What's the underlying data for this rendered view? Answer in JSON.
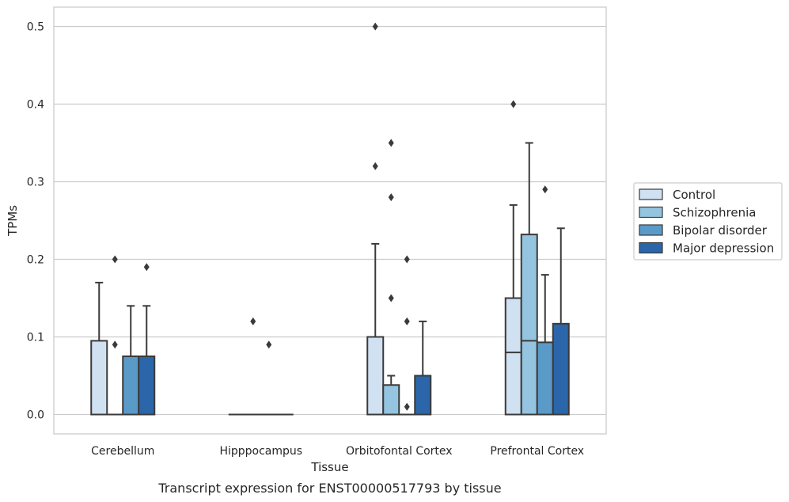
{
  "chart_data": {
    "type": "box",
    "xlabel": "Tissue",
    "ylabel": "TPMs",
    "caption": "Transcript expression for ENST00000517793 by tissue",
    "ylim": [
      -0.025,
      0.525
    ],
    "yticks": [
      "0.0",
      "0.1",
      "0.2",
      "0.3",
      "0.4",
      "0.5"
    ],
    "ytick_values": [
      0,
      0.1,
      0.2,
      0.3,
      0.4,
      0.5
    ],
    "grid": "horizontal",
    "legend_position": "right",
    "categories": [
      "Cerebellum",
      "Hipppocampus",
      "Orbitofontal Cortex",
      "Prefrontal Cortex"
    ],
    "series": [
      {
        "name": "Control",
        "color": "#d0e1f2",
        "boxes": [
          {
            "q1": 0,
            "median": 0,
            "q3": 0.095,
            "whisker_low": 0,
            "whisker_high": 0.17,
            "outliers": []
          },
          {
            "q1": 0,
            "median": 0,
            "q3": 0,
            "whisker_low": 0,
            "whisker_high": 0,
            "outliers": []
          },
          {
            "q1": 0,
            "median": 0,
            "q3": 0.1,
            "whisker_low": 0,
            "whisker_high": 0.22,
            "outliers": [
              0.32,
              0.5
            ]
          },
          {
            "q1": 0,
            "median": 0.08,
            "q3": 0.15,
            "whisker_low": 0,
            "whisker_high": 0.27,
            "outliers": [
              0.4
            ]
          }
        ]
      },
      {
        "name": "Schizophrenia",
        "color": "#94c4df",
        "boxes": [
          {
            "q1": 0,
            "median": 0,
            "q3": 0,
            "whisker_low": 0,
            "whisker_high": 0,
            "outliers": [
              0.09,
              0.2
            ]
          },
          {
            "q1": 0,
            "median": 0,
            "q3": 0,
            "whisker_low": 0,
            "whisker_high": 0,
            "outliers": [
              0.12
            ]
          },
          {
            "q1": 0,
            "median": 0,
            "q3": 0.038,
            "whisker_low": 0,
            "whisker_high": 0.05,
            "outliers": [
              0.15,
              0.28,
              0.35
            ]
          },
          {
            "q1": 0,
            "median": 0.095,
            "q3": 0.232,
            "whisker_low": 0,
            "whisker_high": 0.35,
            "outliers": []
          }
        ]
      },
      {
        "name": "Bipolar disorder",
        "color": "#5a9ac9",
        "boxes": [
          {
            "q1": 0,
            "median": 0,
            "q3": 0.075,
            "whisker_low": 0,
            "whisker_high": 0.14,
            "outliers": []
          },
          {
            "q1": 0,
            "median": 0,
            "q3": 0,
            "whisker_low": 0,
            "whisker_high": 0,
            "outliers": [
              0.09
            ]
          },
          {
            "q1": 0,
            "median": 0,
            "q3": 0,
            "whisker_low": 0,
            "whisker_high": 0,
            "outliers": [
              0.01,
              0.12,
              0.2
            ]
          },
          {
            "q1": 0,
            "median": 0,
            "q3": 0.093,
            "whisker_low": 0,
            "whisker_high": 0.18,
            "outliers": [
              0.29
            ]
          }
        ]
      },
      {
        "name": "Major depression",
        "color": "#2a66a9",
        "boxes": [
          {
            "q1": 0,
            "median": 0,
            "q3": 0.075,
            "whisker_low": 0,
            "whisker_high": 0.14,
            "outliers": [
              0.19
            ]
          },
          {
            "q1": 0,
            "median": 0,
            "q3": 0,
            "whisker_low": 0,
            "whisker_high": 0,
            "outliers": []
          },
          {
            "q1": 0,
            "median": 0,
            "q3": 0.05,
            "whisker_low": 0,
            "whisker_high": 0.12,
            "outliers": []
          },
          {
            "q1": 0,
            "median": 0,
            "q3": 0.117,
            "whisker_low": 0,
            "whisker_high": 0.24,
            "outliers": []
          }
        ]
      }
    ]
  }
}
